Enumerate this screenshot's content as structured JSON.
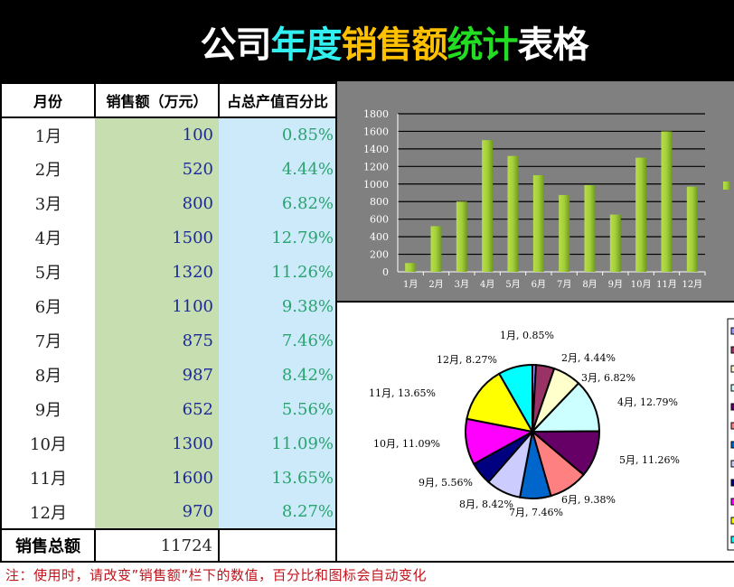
{
  "title": {
    "segments": [
      {
        "text": "公司",
        "color": "#ffffff"
      },
      {
        "text": "年度",
        "color": "#33f0f0"
      },
      {
        "text": "销售额",
        "color": "#ffc000"
      },
      {
        "text": "统计",
        "color": "#22dd22"
      },
      {
        "text": "表格",
        "color": "#ffffff"
      }
    ]
  },
  "table": {
    "headers": [
      "月份",
      "销售额（万元）",
      "占总产值百分比"
    ],
    "rows": [
      {
        "month": "1月",
        "sales": "100",
        "pct": "0.85%"
      },
      {
        "month": "2月",
        "sales": "520",
        "pct": "4.44%"
      },
      {
        "month": "3月",
        "sales": "800",
        "pct": "6.82%"
      },
      {
        "month": "4月",
        "sales": "1500",
        "pct": "12.79%"
      },
      {
        "month": "5月",
        "sales": "1320",
        "pct": "11.26%"
      },
      {
        "month": "6月",
        "sales": "1100",
        "pct": "9.38%"
      },
      {
        "month": "7月",
        "sales": "875",
        "pct": "7.46%"
      },
      {
        "month": "8月",
        "sales": "987",
        "pct": "8.42%"
      },
      {
        "month": "9月",
        "sales": "652",
        "pct": "5.56%"
      },
      {
        "month": "10月",
        "sales": "1300",
        "pct": "11.09%"
      },
      {
        "month": "11月",
        "sales": "1600",
        "pct": "13.65%"
      },
      {
        "month": "12月",
        "sales": "970",
        "pct": "8.27%"
      }
    ],
    "total_label": "销售总额",
    "total_value": "11724",
    "total_pct": ""
  },
  "note": "注：使用时，请改变”销售额”栏下的数值，百分比和图标会自动变化",
  "colors": {
    "bar_chart_bg": "#808080",
    "bar_fill": "#9acd32",
    "sales_col_bg": "#c6deb0",
    "pct_col_bg": "#cdeafb",
    "note_color": "#c0141c"
  },
  "chart_data": [
    {
      "type": "bar",
      "title": "",
      "categories": [
        "1月",
        "2月",
        "3月",
        "4月",
        "5月",
        "6月",
        "7月",
        "8月",
        "9月",
        "10月",
        "11月",
        "12月"
      ],
      "values": [
        100,
        520,
        800,
        1500,
        1320,
        1100,
        875,
        987,
        652,
        1300,
        1600,
        970
      ],
      "xlabel": "",
      "ylabel": "",
      "ylim": [
        0,
        1800
      ],
      "yticks": [
        0,
        200,
        400,
        600,
        800,
        1000,
        1200,
        1400,
        1600,
        1800
      ],
      "grid": true,
      "legend_position": "right",
      "legend_entries": [
        ""
      ]
    },
    {
      "type": "pie",
      "title": "",
      "categories": [
        "1月",
        "2月",
        "3月",
        "4月",
        "5月",
        "6月",
        "7月",
        "8月",
        "9月",
        "10月",
        "11月",
        "12月"
      ],
      "values": [
        0.85,
        4.44,
        6.82,
        12.79,
        11.26,
        9.38,
        7.46,
        8.42,
        5.56,
        11.09,
        13.65,
        8.27
      ],
      "labels": [
        "1月, 0.85%",
        "2月, 4.44%",
        "3月, 6.82%",
        "4月, 12.79%",
        "5月, 11.26%",
        "6月, 9.38%",
        "7月, 7.46%",
        "8月, 8.42%",
        "9月, 5.56%",
        "10月, 11.09%",
        "11月, 13.65%",
        "12月, 8.27%"
      ],
      "colors": [
        "#9999ff",
        "#993366",
        "#ffffcc",
        "#ccffff",
        "#660066",
        "#ff8080",
        "#0066cc",
        "#ccccff",
        "#000080",
        "#ff00ff",
        "#ffff00",
        "#00ffff"
      ],
      "legend_position": "right"
    }
  ]
}
